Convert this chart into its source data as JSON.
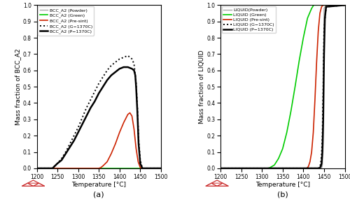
{
  "xlim": [
    1200,
    1500
  ],
  "ylim_a": [
    0.0,
    1.0
  ],
  "ylim_b": [
    0.0,
    1.0
  ],
  "xlabel": "Temperature [°C]",
  "ylabel_a": "Mass fraction of BCC_A2",
  "ylabel_b": "Mass fraction of LIQUID",
  "xticks": [
    1200,
    1250,
    1300,
    1350,
    1400,
    1450,
    1500
  ],
  "yticks": [
    0.0,
    0.1,
    0.2,
    0.3,
    0.4,
    0.5,
    0.6,
    0.7,
    0.8,
    0.9,
    1.0
  ],
  "label_a": "(a)",
  "label_b": "(b)",
  "colors": {
    "powder": "#aaaaaa",
    "green": "#00cc00",
    "presint": "#cc2200",
    "g1370": "#000000",
    "p1370": "#000000"
  },
  "linestyles": {
    "powder": "-",
    "green": "-",
    "presint": "-",
    "g1370": ":",
    "p1370": "-"
  },
  "linewidths": {
    "powder": 1.0,
    "green": 1.2,
    "presint": 1.2,
    "g1370": 1.4,
    "p1370": 1.8
  },
  "legend_a_labels": [
    "BCC_A2 (Powder)",
    "BCC_A2 (Green)",
    "BCC_A2 (Pre-sint)",
    "BCC_A2 (G−1370C)",
    "BCC_A2 (P−1370C)"
  ],
  "legend_b_labels": [
    "LIQUID(Powder)",
    "LIQUID (Green)",
    "LIQUID (Pre-sint)",
    "LIQUID (G−1370C)",
    "LIQUID (P−1370C)"
  ],
  "panel_a": {
    "powder": {
      "x": [
        1200,
        1500
      ],
      "y": [
        0,
        0
      ]
    },
    "green": {
      "x": [
        1200,
        1500
      ],
      "y": [
        0,
        0
      ]
    },
    "presint": {
      "x": [
        1200,
        1350,
        1355,
        1360,
        1370,
        1380,
        1390,
        1400,
        1410,
        1420,
        1425,
        1430,
        1435,
        1440,
        1445,
        1450,
        1455,
        1500
      ],
      "y": [
        0,
        0,
        0.005,
        0.015,
        0.04,
        0.09,
        0.15,
        0.22,
        0.28,
        0.33,
        0.34,
        0.32,
        0.24,
        0.12,
        0.04,
        0.005,
        0,
        0
      ]
    },
    "g1370": {
      "x": [
        1200,
        1238,
        1242,
        1250,
        1260,
        1270,
        1280,
        1290,
        1300,
        1310,
        1320,
        1330,
        1340,
        1350,
        1360,
        1370,
        1380,
        1390,
        1400,
        1410,
        1420,
        1430,
        1435,
        1440,
        1443,
        1446,
        1450,
        1455,
        1500
      ],
      "y": [
        0,
        0,
        0.01,
        0.03,
        0.06,
        0.1,
        0.15,
        0.2,
        0.25,
        0.31,
        0.37,
        0.42,
        0.47,
        0.52,
        0.56,
        0.6,
        0.63,
        0.65,
        0.67,
        0.68,
        0.69,
        0.67,
        0.64,
        0.52,
        0.38,
        0.18,
        0.05,
        0,
        0
      ]
    },
    "p1370": {
      "x": [
        1200,
        1238,
        1242,
        1250,
        1260,
        1270,
        1280,
        1290,
        1300,
        1310,
        1320,
        1330,
        1340,
        1350,
        1360,
        1370,
        1380,
        1390,
        1400,
        1410,
        1420,
        1430,
        1435,
        1438,
        1440,
        1443,
        1446,
        1450,
        1455,
        1500
      ],
      "y": [
        0,
        0,
        0.01,
        0.03,
        0.05,
        0.09,
        0.13,
        0.17,
        0.22,
        0.27,
        0.32,
        0.37,
        0.41,
        0.46,
        0.5,
        0.54,
        0.57,
        0.59,
        0.61,
        0.62,
        0.62,
        0.61,
        0.6,
        0.57,
        0.5,
        0.35,
        0.15,
        0.03,
        0,
        0
      ]
    }
  },
  "panel_b": {
    "powder": {
      "x": [
        1200,
        1444,
        1446,
        1448,
        1450,
        1455,
        1500
      ],
      "y": [
        0,
        0,
        0.02,
        0.15,
        0.98,
        1.0,
        1.0
      ]
    },
    "green": {
      "x": [
        1200,
        1315,
        1320,
        1330,
        1340,
        1350,
        1360,
        1370,
        1380,
        1390,
        1400,
        1410,
        1420,
        1425,
        1430,
        1500
      ],
      "y": [
        0,
        0,
        0.005,
        0.02,
        0.06,
        0.12,
        0.22,
        0.35,
        0.5,
        0.66,
        0.8,
        0.92,
        0.98,
        1.0,
        1.0,
        1.0
      ]
    },
    "presint": {
      "x": [
        1200,
        1408,
        1412,
        1416,
        1420,
        1424,
        1428,
        1432,
        1436,
        1440,
        1444,
        1448,
        1500
      ],
      "y": [
        0,
        0,
        0.01,
        0.04,
        0.1,
        0.22,
        0.42,
        0.65,
        0.84,
        0.95,
        0.99,
        1.0,
        1.0
      ]
    },
    "g1370": {
      "x": [
        1200,
        1436,
        1438,
        1440,
        1442,
        1444,
        1446,
        1448,
        1450,
        1455,
        1500
      ],
      "y": [
        0,
        0,
        0.005,
        0.01,
        0.03,
        0.08,
        0.2,
        0.5,
        0.85,
        0.99,
        1.0
      ]
    },
    "p1370": {
      "x": [
        1200,
        1438,
        1440,
        1442,
        1444,
        1446,
        1448,
        1450,
        1452,
        1455,
        1500
      ],
      "y": [
        0,
        0,
        0.005,
        0.01,
        0.03,
        0.1,
        0.3,
        0.7,
        0.92,
        0.99,
        1.0
      ]
    }
  }
}
